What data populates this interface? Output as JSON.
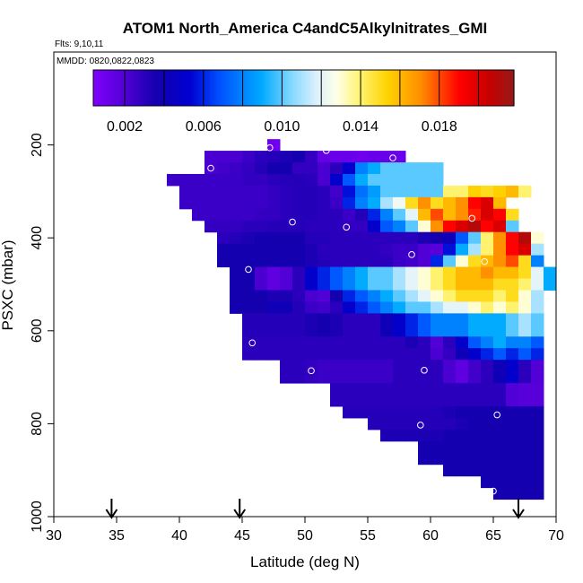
{
  "chart_data": {
    "type": "heatmap",
    "title": "ATOM1 North_America C4andC5Alkylnitrates_GMI",
    "flights_label": "Flts: 9,10,11",
    "dates_label": "MMDD: 0820,0822,0823",
    "xlabel": "Latitude (deg N)",
    "ylabel": "PSXC (mbar)",
    "xlim": [
      30,
      70
    ],
    "ylim": [
      1000,
      0
    ],
    "x_ticks": [
      "30",
      "35",
      "40",
      "45",
      "50",
      "55",
      "60",
      "65",
      "70"
    ],
    "y_ticks": [
      "200",
      "400",
      "600",
      "800",
      "1000"
    ],
    "colorbar": {
      "range": [
        0.0004,
        0.0218
      ],
      "tick_labels": [
        "0.002",
        "0.006",
        "0.010",
        "0.014",
        "0.018"
      ],
      "tick_values": [
        0.002,
        0.006,
        0.01,
        0.014,
        0.018
      ]
    },
    "cell_size": {
      "lat": 1,
      "pressure": 25
    },
    "rows": [
      {
        "p": 200,
        "lat0": 47,
        "values": [
          0.001
        ]
      },
      {
        "p": 225,
        "lat0": 42,
        "values": [
          0.0022,
          0.0022,
          0.0022,
          0.0026,
          0.003,
          0.0032,
          0.0034,
          0.0036,
          0.0028,
          0.0014,
          0.0012,
          0.0012,
          0.001,
          0.0012,
          0.0012,
          0.0012
        ]
      },
      {
        "p": 250,
        "lat0": 42,
        "values": [
          0.0022,
          0.0024,
          0.0026,
          0.0028,
          0.0032,
          0.0036,
          0.0036,
          0.0028,
          0.0028,
          0.0022,
          0.003,
          0.005,
          0.008,
          0.009,
          0.01,
          0.01,
          0.01,
          0.01,
          0.01
        ]
      },
      {
        "p": 275,
        "lat0": 39,
        "values": [
          0.0026,
          0.0026,
          0.0026,
          0.0026,
          0.0026,
          0.0026,
          0.0028,
          0.0028,
          0.003,
          0.0032,
          0.0032,
          0.003,
          0.0022,
          0.005,
          0.007,
          0.009,
          0.01,
          0.01,
          0.01,
          0.01,
          0.01,
          0.01
        ]
      },
      {
        "p": 300,
        "lat0": 40,
        "values": [
          0.0026,
          0.0026,
          0.0026,
          0.0026,
          0.0026,
          0.0026,
          0.0026,
          0.0028,
          0.003,
          0.0032,
          0.0032,
          0.003,
          0.0024,
          0.0056,
          0.0076,
          0.0086,
          0.01,
          0.01,
          0.01,
          0.01,
          0.01,
          0.014,
          0.014,
          0.0154,
          0.015,
          0.0154,
          0.016,
          0.014
        ]
      },
      {
        "p": 325,
        "lat0": 40,
        "values": [
          0.0026,
          0.0026,
          0.0026,
          0.0026,
          0.0026,
          0.0026,
          0.0026,
          0.0028,
          0.003,
          0.0032,
          0.0032,
          0.003,
          0.0026,
          0.006,
          0.008,
          0.009,
          0.011,
          0.0124,
          0.015,
          0.017,
          0.015,
          0.016,
          0.017,
          0.019,
          0.02,
          0.016
        ]
      },
      {
        "p": 350,
        "lat0": 41,
        "values": [
          0.0026,
          0.0026,
          0.0026,
          0.0026,
          0.0026,
          0.0028,
          0.0028,
          0.003,
          0.0032,
          0.0032,
          0.003,
          0.003,
          0.0026,
          0.0032,
          0.006,
          0.008,
          0.01,
          0.012,
          0.016,
          0.018,
          0.016,
          0.017,
          0.0186,
          0.02,
          0.019,
          0.015
        ]
      },
      {
        "p": 375,
        "lat0": 42,
        "values": [
          0.0028,
          0.0028,
          0.0028,
          0.003,
          0.003,
          0.0032,
          0.0032,
          0.0032,
          0.003,
          0.003,
          0.003,
          0.0028,
          0.0028,
          0.005,
          0.007,
          0.008,
          0.01,
          0.013,
          0.017,
          0.019,
          0.02,
          0.021,
          0.019,
          0.02,
          0.01
        ]
      },
      {
        "p": 400,
        "lat0": 43,
        "values": [
          0.003,
          0.0032,
          0.0034,
          0.0036,
          0.0036,
          0.0036,
          0.0036,
          0.0032,
          0.0032,
          0.003,
          0.003,
          0.003,
          0.003,
          0.003,
          0.003,
          0.003,
          0.0034,
          0.0036,
          0.004,
          0.007,
          0.01,
          0.014,
          0.017,
          0.019,
          0.021,
          0.013
        ]
      },
      {
        "p": 425,
        "lat0": 43,
        "values": [
          0.0036,
          0.0036,
          0.0036,
          0.0036,
          0.0036,
          0.0036,
          0.0036,
          0.0034,
          0.003,
          0.003,
          0.003,
          0.003,
          0.003,
          0.0028,
          0.0026,
          0.0026,
          0.002,
          0.0018,
          0.0056,
          0.009,
          0.011,
          0.014,
          0.017,
          0.019,
          0.02,
          0.011
        ]
      },
      {
        "p": 450,
        "lat0": 43,
        "values": [
          0.0036,
          0.0036,
          0.0036,
          0.0036,
          0.0036,
          0.0036,
          0.0036,
          0.0034,
          0.0032,
          0.003,
          0.003,
          0.003,
          0.003,
          0.003,
          0.0026,
          0.0024,
          0.002,
          0.006,
          0.01,
          0.013,
          0.015,
          0.016,
          0.017,
          0.018,
          0.015,
          0.008
        ]
      },
      {
        "p": 475,
        "lat0": 44,
        "values": [
          0.0036,
          0.0036,
          0.0022,
          0.0016,
          0.002,
          0.003,
          0.005,
          0.006,
          0.007,
          0.008,
          0.009,
          0.01,
          0.01,
          0.011,
          0.012,
          0.013,
          0.014,
          0.015,
          0.016,
          0.016,
          0.017,
          0.016,
          0.016,
          0.015,
          0.012,
          0.009
        ]
      },
      {
        "p": 500,
        "lat0": 44,
        "values": [
          0.0036,
          0.0036,
          0.0022,
          0.0016,
          0.002,
          0.003,
          0.005,
          0.006,
          0.007,
          0.008,
          0.009,
          0.01,
          0.01,
          0.011,
          0.012,
          0.013,
          0.014,
          0.015,
          0.016,
          0.016,
          0.016,
          0.015,
          0.015,
          0.014,
          0.012,
          0.009
        ]
      },
      {
        "p": 525,
        "lat0": 44,
        "values": [
          0.0036,
          0.0036,
          0.0036,
          0.0034,
          0.0034,
          0.003,
          0.0022,
          0.002,
          0.0036,
          0.006,
          0.007,
          0.008,
          0.009,
          0.01,
          0.011,
          0.012,
          0.013,
          0.014,
          0.015,
          0.015,
          0.015,
          0.014,
          0.015,
          0.013,
          0.011
        ]
      },
      {
        "p": 550,
        "lat0": 44,
        "values": [
          0.0036,
          0.0036,
          0.0036,
          0.004,
          0.004,
          0.0032,
          0.0026,
          0.0024,
          0.003,
          0.005,
          0.006,
          0.007,
          0.008,
          0.009,
          0.01,
          0.01,
          0.011,
          0.012,
          0.012,
          0.013,
          0.014,
          0.013,
          0.014,
          0.013,
          0.011
        ]
      },
      {
        "p": 575,
        "lat0": 45,
        "values": [
          0.0032,
          0.0032,
          0.0032,
          0.0032,
          0.0032,
          0.0034,
          0.0036,
          0.0034,
          0.003,
          0.003,
          0.003,
          0.004,
          0.005,
          0.006,
          0.007,
          0.008,
          0.008,
          0.008,
          0.009,
          0.009,
          0.009,
          0.01,
          0.011,
          0.01
        ]
      },
      {
        "p": 600,
        "lat0": 45,
        "values": [
          0.0032,
          0.0032,
          0.0032,
          0.0032,
          0.0032,
          0.0034,
          0.0036,
          0.0034,
          0.003,
          0.003,
          0.003,
          0.004,
          0.005,
          0.006,
          0.007,
          0.008,
          0.008,
          0.008,
          0.009,
          0.009,
          0.009,
          0.01,
          0.011,
          0.01
        ]
      },
      {
        "p": 625,
        "lat0": 45,
        "values": [
          0.003,
          0.003,
          0.003,
          0.003,
          0.003,
          0.003,
          0.003,
          0.003,
          0.003,
          0.003,
          0.003,
          0.003,
          0.003,
          0.0034,
          0.003,
          0.002,
          0.003,
          0.005,
          0.007,
          0.008,
          0.009,
          0.008,
          0.008,
          0.007
        ]
      },
      {
        "p": 650,
        "lat0": 45,
        "values": [
          0.003,
          0.003,
          0.003,
          0.003,
          0.003,
          0.003,
          0.003,
          0.003,
          0.003,
          0.003,
          0.003,
          0.003,
          0.003,
          0.003,
          0.003,
          0.0022,
          0.0028,
          0.004,
          0.005,
          0.006,
          0.007,
          0.006,
          0.007,
          0.006
        ]
      },
      {
        "p": 675,
        "lat0": 48,
        "values": [
          0.003,
          0.003,
          0.0028,
          0.0026,
          0.0026,
          0.0026,
          0.0026,
          0.0026,
          0.0026,
          0.003,
          0.003,
          0.003,
          0.003,
          0.0022,
          0.0016,
          0.0024,
          0.003,
          0.004,
          0.005,
          0.003,
          0.002
        ]
      },
      {
        "p": 700,
        "lat0": 48,
        "values": [
          0.003,
          0.003,
          0.0028,
          0.0026,
          0.0026,
          0.0026,
          0.0026,
          0.0026,
          0.0026,
          0.003,
          0.003,
          0.003,
          0.003,
          0.0022,
          0.0016,
          0.0024,
          0.003,
          0.004,
          0.005,
          0.003,
          0.002
        ]
      },
      {
        "p": 725,
        "lat0": 52,
        "values": [
          0.003,
          0.003,
          0.003,
          0.003,
          0.003,
          0.003,
          0.003,
          0.003,
          0.003,
          0.003,
          0.003,
          0.003,
          0.003,
          0.003,
          0.002,
          0.0018,
          0.0018
        ]
      },
      {
        "p": 750,
        "lat0": 52,
        "values": [
          0.003,
          0.003,
          0.003,
          0.003,
          0.003,
          0.003,
          0.003,
          0.003,
          0.003,
          0.003,
          0.003,
          0.003,
          0.003,
          0.003,
          0.002,
          0.0018,
          0.0018
        ]
      },
      {
        "p": 775,
        "lat0": 53,
        "values": [
          0.0032,
          0.0032,
          0.0032,
          0.0032,
          0.0032,
          0.0032,
          0.0032,
          0.0032,
          0.0034,
          0.0036,
          0.0036,
          0.0036,
          0.0036,
          0.0036,
          0.0036,
          0.0036
        ]
      },
      {
        "p": 800,
        "lat0": 55,
        "values": [
          0.0032,
          0.0032,
          0.0032,
          0.0032,
          0.0032,
          0.0032,
          0.0032,
          0.0034,
          0.0036,
          0.0036,
          0.0036,
          0.0036,
          0.0036,
          0.0036
        ]
      },
      {
        "p": 825,
        "lat0": 56,
        "values": [
          0.0034,
          0.0034,
          0.0034,
          0.0034,
          0.0034,
          0.0036,
          0.0036,
          0.0036,
          0.0036,
          0.0036,
          0.0036,
          0.0036,
          0.0036
        ]
      },
      {
        "p": 850,
        "lat0": 59,
        "values": [
          0.0036,
          0.0036,
          0.0036,
          0.0036,
          0.0036,
          0.0036,
          0.0036,
          0.0036,
          0.0036,
          0.0036
        ]
      },
      {
        "p": 875,
        "lat0": 59,
        "values": [
          0.0036,
          0.0036,
          0.0036,
          0.0036,
          0.0036,
          0.0036,
          0.0036,
          0.0036,
          0.0036,
          0.0036
        ]
      },
      {
        "p": 900,
        "lat0": 61,
        "values": [
          0.0036,
          0.0036,
          0.0036,
          0.0036,
          0.0036,
          0.0036,
          0.0036,
          0.0036
        ]
      },
      {
        "p": 925,
        "lat0": 64,
        "values": [
          0.0036,
          0.0036,
          0.0036,
          0.0036,
          0.0036
        ]
      },
      {
        "p": 950,
        "lat0": 65,
        "values": [
          0.0036,
          0.0036,
          0.0036,
          0.0036
        ]
      }
    ],
    "markers": [
      {
        "lat": 47.2,
        "p": 206
      },
      {
        "lat": 51.7,
        "p": 212
      },
      {
        "lat": 57.0,
        "p": 228
      },
      {
        "lat": 42.5,
        "p": 250
      },
      {
        "lat": 39.0,
        "p": 303
      },
      {
        "lat": 49.0,
        "p": 366
      },
      {
        "lat": 53.3,
        "p": 377
      },
      {
        "lat": 63.3,
        "p": 358
      },
      {
        "lat": 58.5,
        "p": 436
      },
      {
        "lat": 64.3,
        "p": 451
      },
      {
        "lat": 45.5,
        "p": 468
      },
      {
        "lat": 45.8,
        "p": 626
      },
      {
        "lat": 50.5,
        "p": 686
      },
      {
        "lat": 59.5,
        "p": 685
      },
      {
        "lat": 65.3,
        "p": 781
      },
      {
        "lat": 59.2,
        "p": 803
      },
      {
        "lat": 65.0,
        "p": 945
      }
    ],
    "arrows": [
      {
        "lat": 34.6
      },
      {
        "lat": 44.8
      },
      {
        "lat": 67.0
      }
    ]
  }
}
